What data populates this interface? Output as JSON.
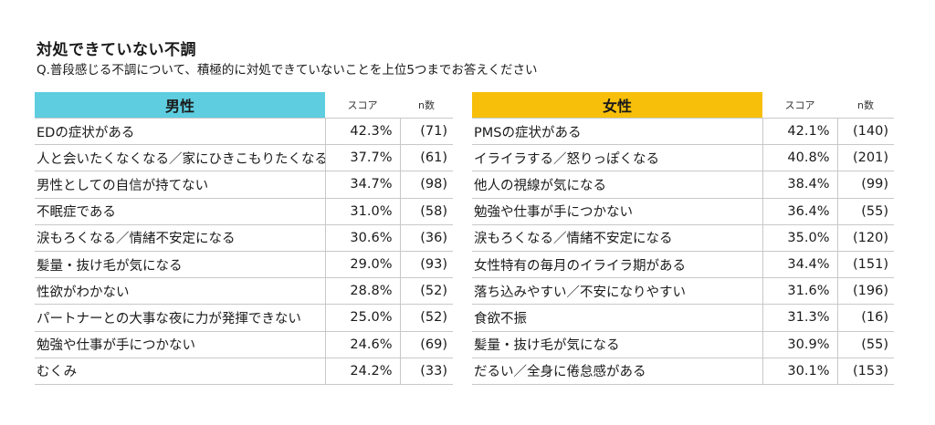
{
  "header": {
    "title": "対処できていない不調",
    "question": "Q.普段感じる不調について、積極的に対処できていないことを上位5つまでお答えください"
  },
  "chart_data": [
    {
      "type": "table",
      "group": "男性",
      "columns": [
        "スコア",
        "n数"
      ],
      "rows": [
        {
          "item": "EDの症状がある",
          "score": "42.3%",
          "n": "(71)"
        },
        {
          "item": "人と会いたくなくなる／家にひきこもりたくなる",
          "score": "37.7%",
          "n": "(61)"
        },
        {
          "item": "男性としての自信が持てない",
          "score": "34.7%",
          "n": "(98)"
        },
        {
          "item": "不眠症である",
          "score": "31.0%",
          "n": "(58)"
        },
        {
          "item": "涙もろくなる／情緒不安定になる",
          "score": "30.6%",
          "n": "(36)"
        },
        {
          "item": "髪量・抜け毛が気になる",
          "score": "29.0%",
          "n": "(93)"
        },
        {
          "item": "性欲がわかない",
          "score": "28.8%",
          "n": "(52)"
        },
        {
          "item": "パートナーとの大事な夜に力が発揮できない",
          "score": "25.0%",
          "n": "(52)"
        },
        {
          "item": "勉強や仕事が手につかない",
          "score": "24.6%",
          "n": "(69)"
        },
        {
          "item": "むくみ",
          "score": "24.2%",
          "n": "(33)"
        }
      ],
      "colors": {
        "header": "#5ecde0"
      }
    },
    {
      "type": "table",
      "group": "女性",
      "columns": [
        "スコア",
        "n数"
      ],
      "rows": [
        {
          "item": "PMSの症状がある",
          "score": "42.1%",
          "n": "(140)"
        },
        {
          "item": "イライラする／怒りっぽくなる",
          "score": "40.8%",
          "n": "(201)"
        },
        {
          "item": "他人の視線が気になる",
          "score": "38.4%",
          "n": "(99)"
        },
        {
          "item": "勉強や仕事が手につかない",
          "score": "36.4%",
          "n": "(55)"
        },
        {
          "item": "涙もろくなる／情緒不安定になる",
          "score": "35.0%",
          "n": "(120)"
        },
        {
          "item": "女性特有の毎月のイライラ期がある",
          "score": "34.4%",
          "n": "(151)"
        },
        {
          "item": "落ち込みやすい／不安になりやすい",
          "score": "31.6%",
          "n": "(196)"
        },
        {
          "item": "食欲不振",
          "score": "31.3%",
          "n": "(16)"
        },
        {
          "item": "髪量・抜け毛が気になる",
          "score": "30.9%",
          "n": "(55)"
        },
        {
          "item": "だるい／全身に倦怠感がある",
          "score": "30.1%",
          "n": "(153)"
        }
      ],
      "colors": {
        "header": "#f7bf0a"
      }
    }
  ]
}
